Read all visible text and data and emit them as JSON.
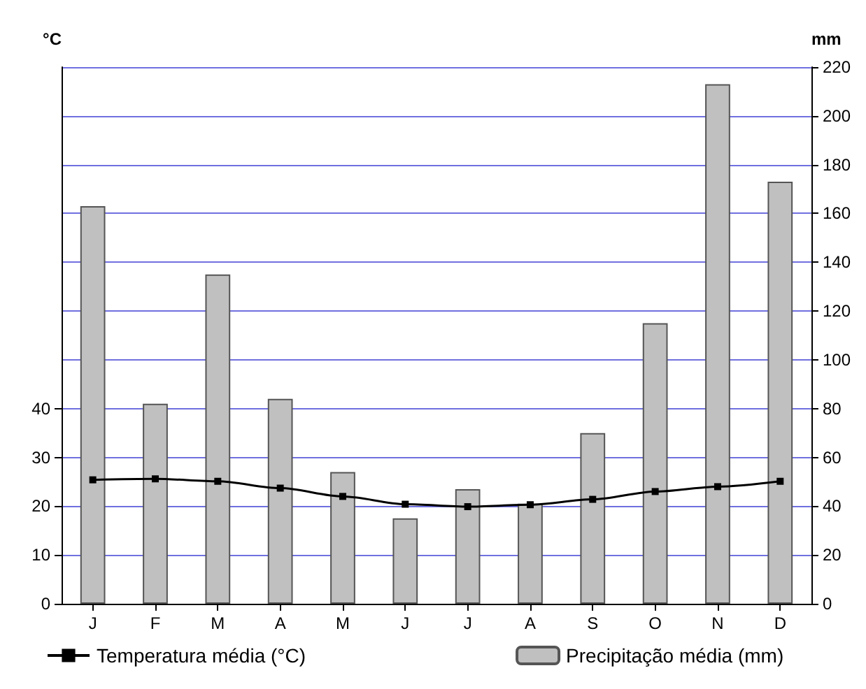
{
  "chart_data": {
    "type": "bar",
    "ylabel": "°C",
    "y2label": "mm",
    "categories": [
      "J",
      "F",
      "M",
      "A",
      "M",
      "J",
      "J",
      "A",
      "S",
      "O",
      "N",
      "D"
    ],
    "series": [
      {
        "name": "Temperatura média (°C)",
        "type": "line",
        "color": "#000000",
        "marker": "square",
        "values": [
          25.4,
          25.6,
          25.1,
          23.7,
          22.0,
          20.4,
          19.9,
          20.3,
          21.4,
          23.0,
          24.0,
          25.1
        ]
      },
      {
        "name": "Precipitação média (mm)",
        "axis": "y2",
        "color": "#c0c0c0",
        "values": [
          163,
          82,
          135,
          84,
          54,
          35,
          47,
          41,
          70,
          115,
          213,
          173
        ]
      }
    ],
    "ylim": [
      0,
      110
    ],
    "yticks": [
      0,
      10,
      20,
      30,
      40
    ],
    "y2lim": [
      0,
      220
    ],
    "y2ticks": [
      0,
      20,
      40,
      60,
      80,
      100,
      120,
      140,
      160,
      180,
      200,
      220
    ],
    "grid": "y2",
    "legend": "bottom"
  }
}
